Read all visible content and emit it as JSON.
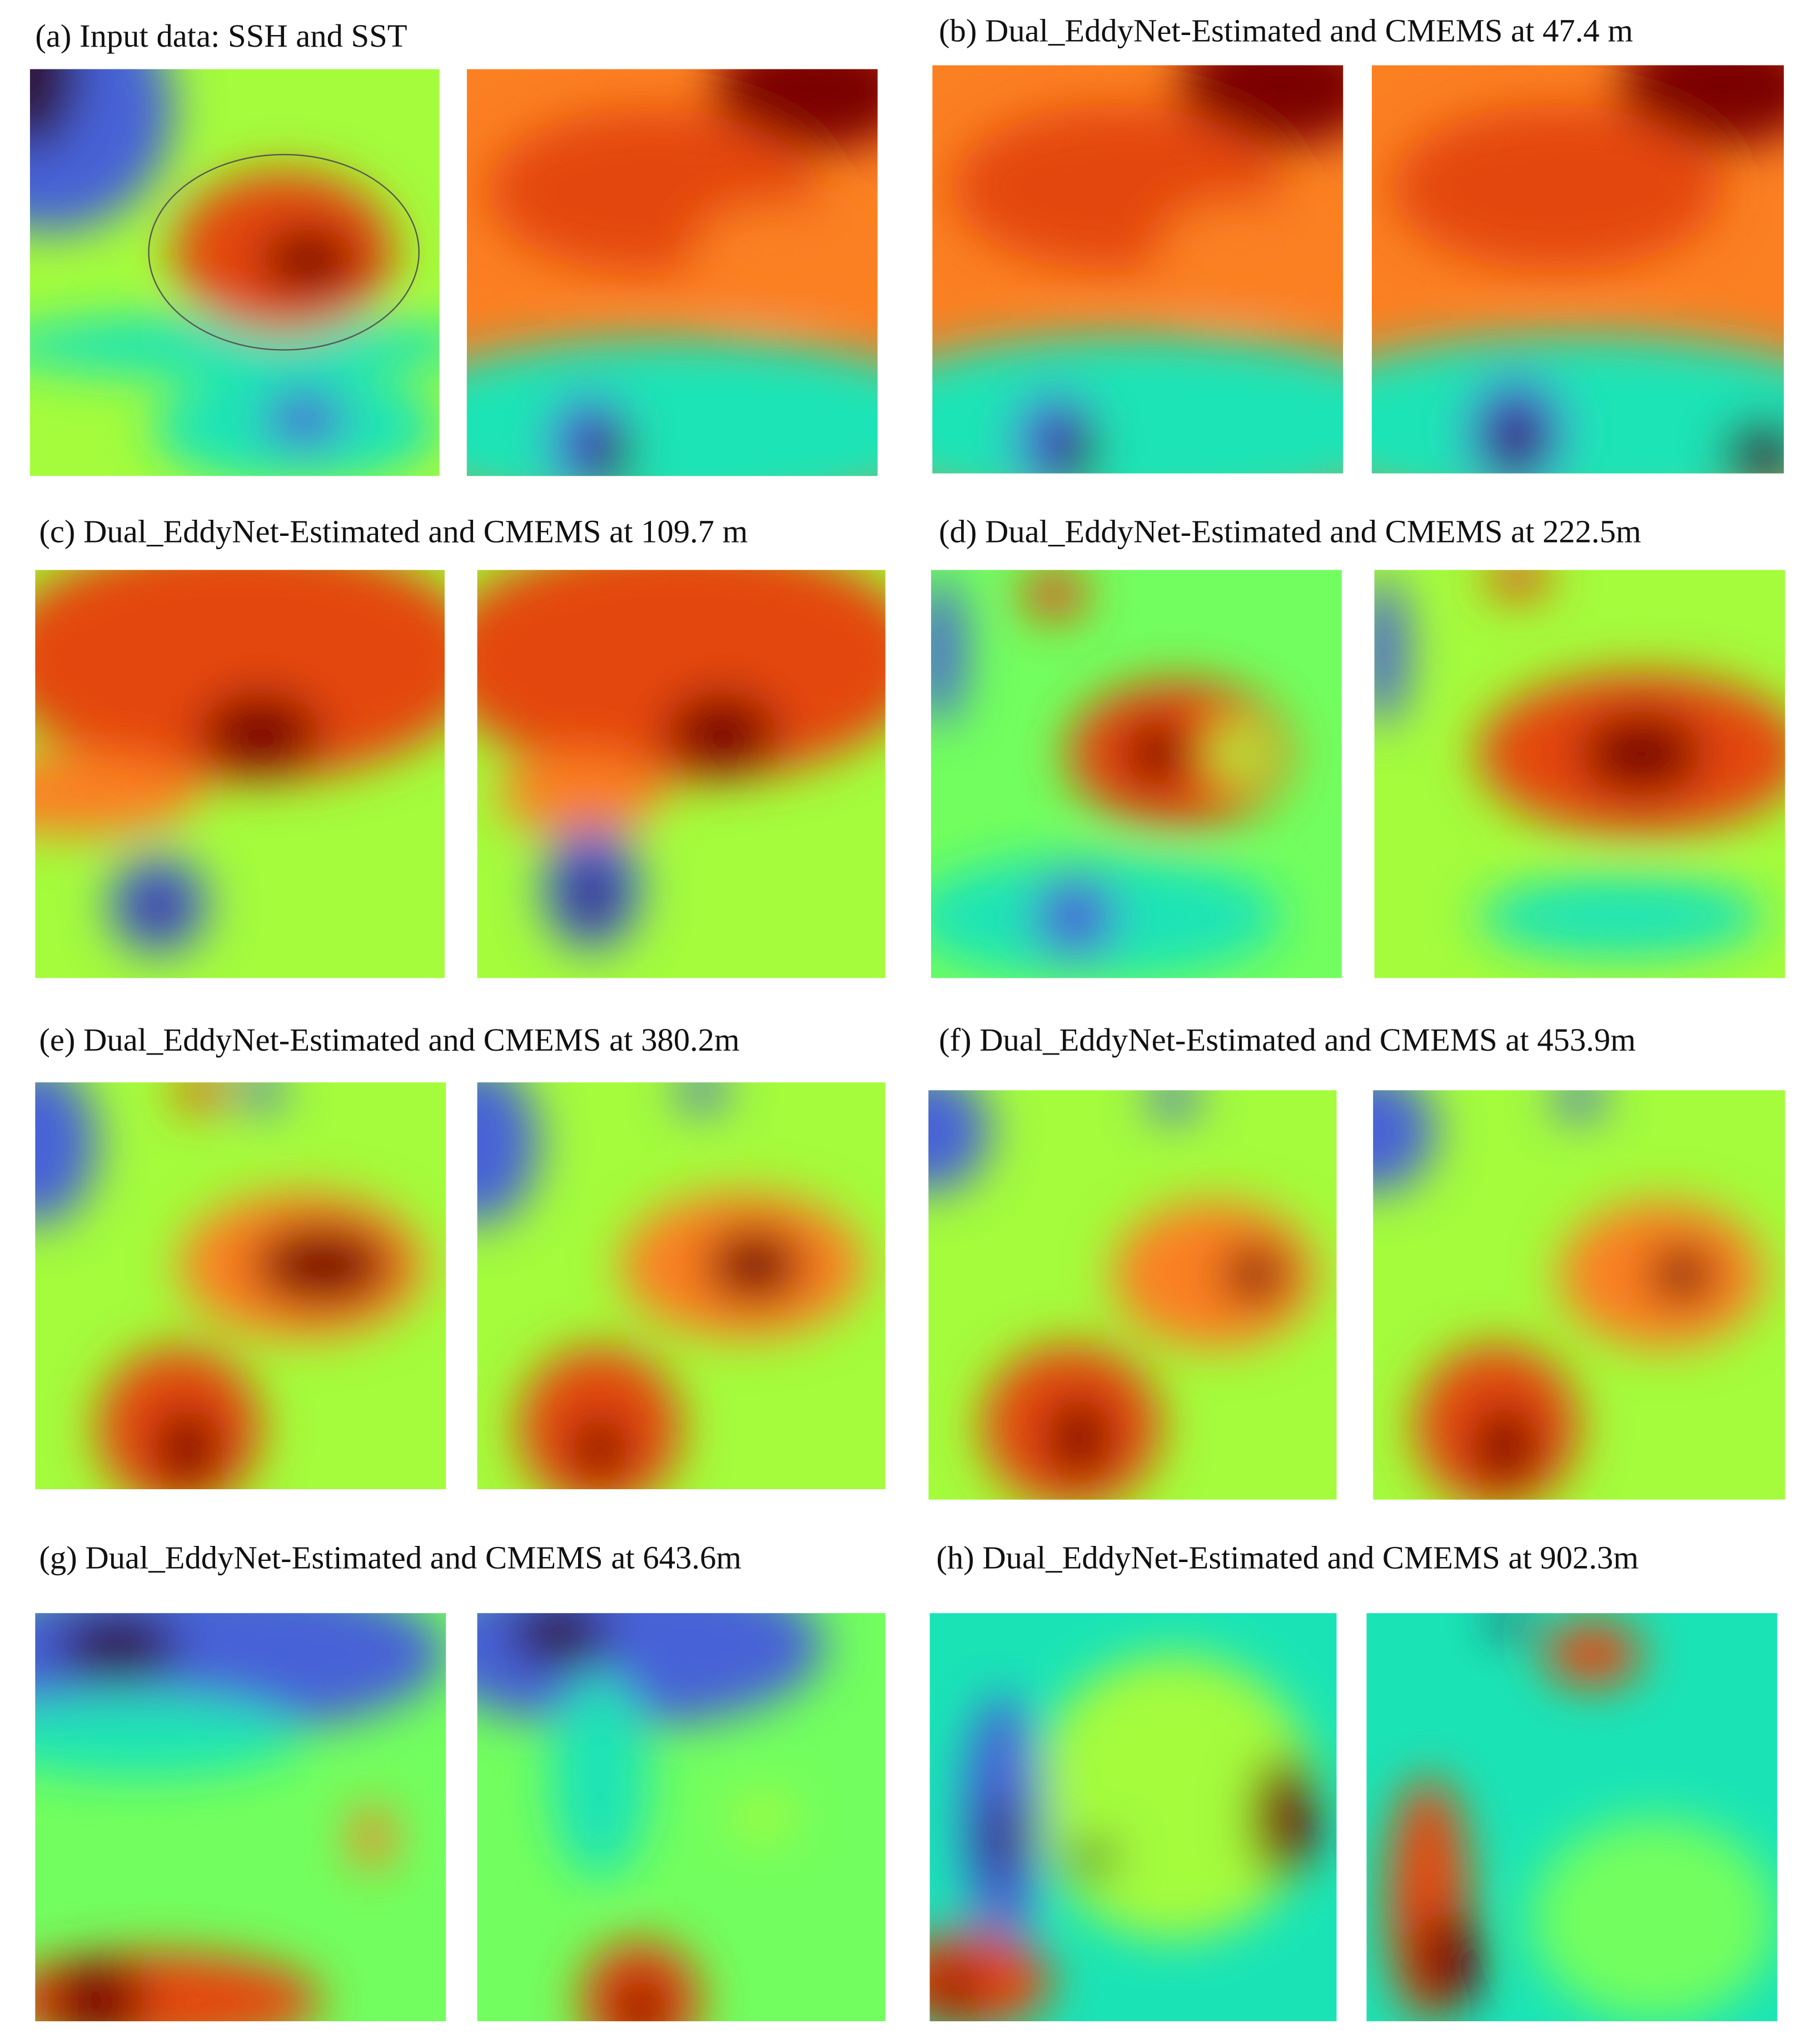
{
  "panels": [
    {
      "title": "(a) Input data: SSH and SST"
    },
    {
      "title": "(b) Dual_EddyNet-Estimated and CMEMS at 47.4 m"
    },
    {
      "title": "(c) Dual_EddyNet-Estimated and CMEMS at 109.7 m"
    },
    {
      "title": "(d) Dual_EddyNet-Estimated and CMEMS at 222.5m"
    },
    {
      "title": "(e) Dual_EddyNet-Estimated and CMEMS at 380.2m"
    },
    {
      "title": "(f) Dual_EddyNet-Estimated and CMEMS at 453.9m"
    },
    {
      "title": "(g) Dual_EddyNet-Estimated and CMEMS at 643.6m"
    },
    {
      "title": "(h) Dual_EddyNet-Estimated and CMEMS at 902.3m"
    }
  ]
}
